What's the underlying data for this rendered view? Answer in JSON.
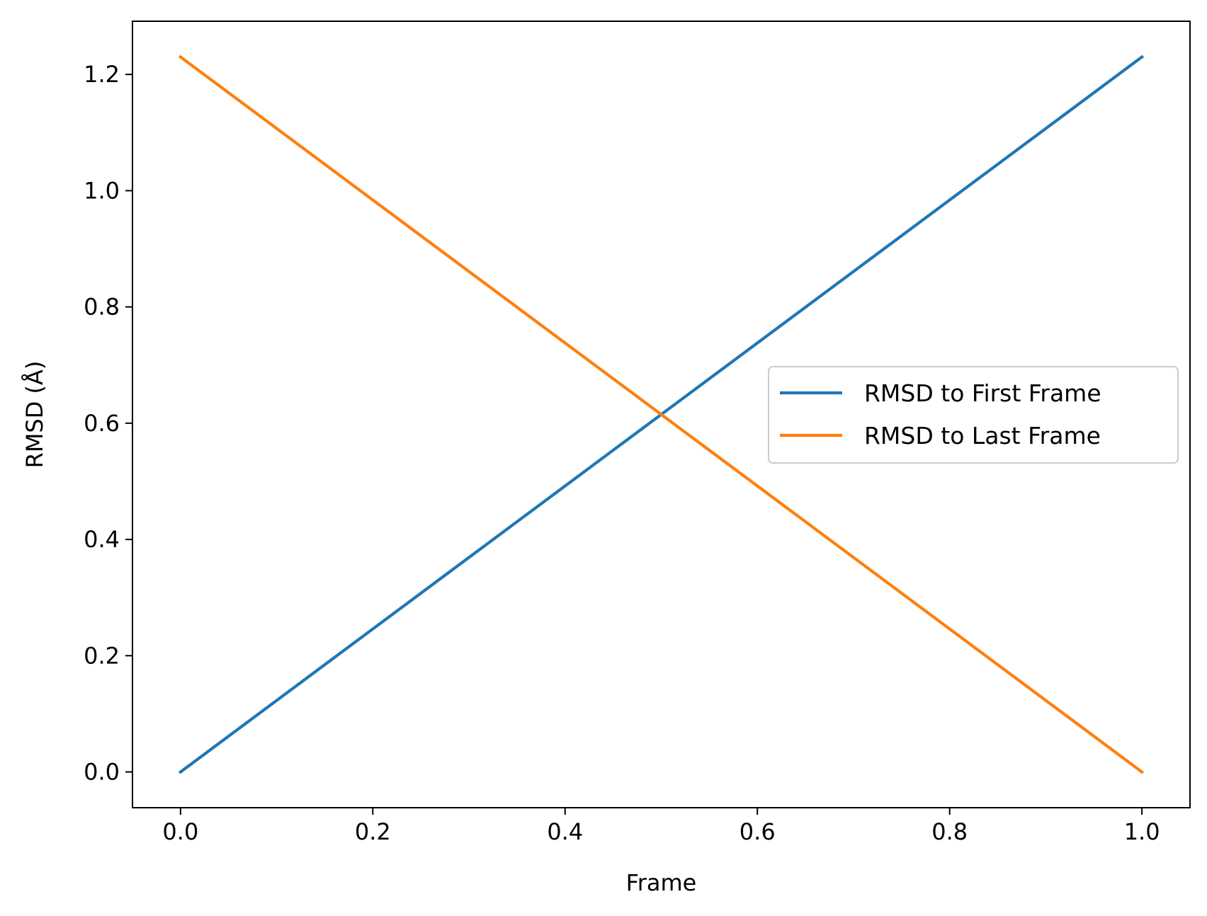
{
  "chart_data": {
    "type": "line",
    "title": "",
    "xlabel": "Frame",
    "ylabel": "RMSD (Å)",
    "xlim": [
      -0.05,
      1.05
    ],
    "ylim": [
      -0.0615,
      1.2915
    ],
    "xticks": [
      0.0,
      0.2,
      0.4,
      0.6,
      0.8,
      1.0
    ],
    "xtick_labels": [
      "0.0",
      "0.2",
      "0.4",
      "0.6",
      "0.8",
      "1.0"
    ],
    "yticks": [
      0.0,
      0.2,
      0.4,
      0.6,
      0.8,
      1.0,
      1.2
    ],
    "ytick_labels": [
      "0.0",
      "0.2",
      "0.4",
      "0.6",
      "0.8",
      "1.0",
      "1.2"
    ],
    "grid": false,
    "legend_position": "center-right",
    "series": [
      {
        "name": "RMSD to First Frame",
        "color": "#1f77b4",
        "x": [
          0.0,
          1.0
        ],
        "y": [
          0.0,
          1.23
        ]
      },
      {
        "name": "RMSD to Last Frame",
        "color": "#ff7f0e",
        "x": [
          0.0,
          1.0
        ],
        "y": [
          1.23,
          0.0
        ]
      }
    ]
  }
}
